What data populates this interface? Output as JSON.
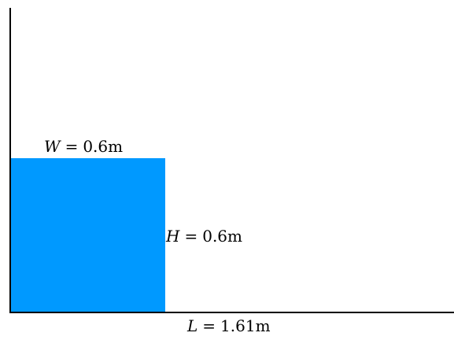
{
  "colors": {
    "water": "#0099ff",
    "walls": "#000000",
    "background": "#ffffff"
  },
  "labels": {
    "width": {
      "symbol": "W",
      "equals": "=",
      "value": "0.6m"
    },
    "height": {
      "symbol": "H",
      "equals": "=",
      "value": "0.6m"
    },
    "length": {
      "symbol": "L",
      "equals": "=",
      "value": "1.61m"
    }
  }
}
